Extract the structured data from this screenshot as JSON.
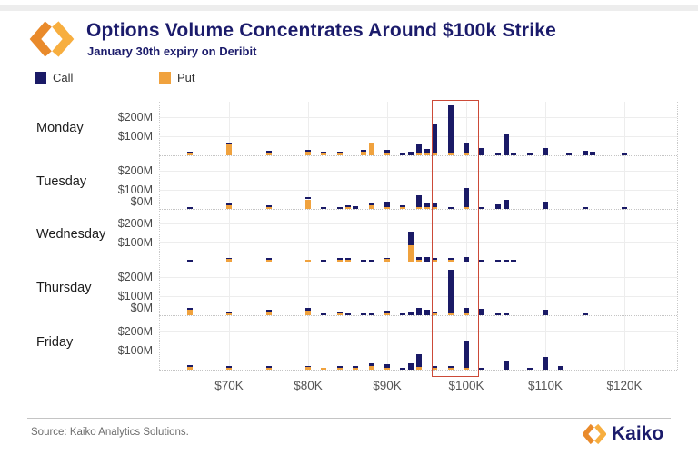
{
  "header": {
    "title": "Options Volume Concentrates Around $100k Strike",
    "subtitle": "January 30th expiry on Deribit"
  },
  "legend": [
    {
      "label": "Call",
      "color": "#1A1A66"
    },
    {
      "label": "Put",
      "color": "#F0A23E"
    }
  ],
  "footer": {
    "source": "Source: Kaiko Analytics Solutions.",
    "brand": "Kaiko"
  },
  "colors": {
    "call": "#1A1A66",
    "put": "#F0A23E",
    "title": "#1B1B6B",
    "highlight_red": "#CC4A38",
    "axis_text": "#555555",
    "grid": "#EDEDED"
  },
  "chart_data": {
    "type": "bar",
    "stacked": true,
    "title": "Options Volume Concentrates Around $100k Strike",
    "subtitle": "January 30th expiry on Deribit",
    "unit": "$M notional volume",
    "legend_position": "top-left",
    "series_names": [
      "Call",
      "Put"
    ],
    "x_axis": {
      "label": "Strike price",
      "ticks": [
        "$70K",
        "$80K",
        "$90K",
        "$100K",
        "$110K",
        "$120K"
      ],
      "tick_values": [
        70,
        80,
        90,
        100,
        110,
        120
      ],
      "range_k": [
        61,
        127
      ]
    },
    "y_axis": {
      "ticks": [
        "$200M",
        "$100M"
      ],
      "zero_tick": "$0M",
      "zero_tick_rows": [
        1,
        3
      ],
      "range": [
        0,
        276
      ],
      "gridlines": [
        100,
        200
      ]
    },
    "highlight_box": {
      "strike_range_k": [
        95.6,
        101.4
      ],
      "meaning": "volume concentrated around $100k strike"
    },
    "days": [
      {
        "day": "Monday",
        "bars": [
          [
            65,
            4,
            4
          ],
          [
            70,
            55,
            10
          ],
          [
            75,
            15,
            5
          ],
          [
            80,
            20,
            6
          ],
          [
            82,
            4,
            3
          ],
          [
            84,
            8,
            4
          ],
          [
            87,
            20,
            5
          ],
          [
            88,
            60,
            8
          ],
          [
            90,
            4,
            18
          ],
          [
            92,
            0,
            8
          ],
          [
            93,
            0,
            18
          ],
          [
            94,
            10,
            45
          ],
          [
            95,
            8,
            25
          ],
          [
            96,
            5,
            155
          ],
          [
            98,
            5,
            255
          ],
          [
            100,
            3,
            60
          ],
          [
            102,
            0,
            38
          ],
          [
            104,
            0,
            5
          ],
          [
            105,
            0,
            115
          ],
          [
            106,
            0,
            8
          ],
          [
            108,
            0,
            5
          ],
          [
            110,
            0,
            38
          ],
          [
            113,
            0,
            5
          ],
          [
            115,
            0,
            22
          ],
          [
            116,
            0,
            18
          ],
          [
            120,
            0,
            5
          ]
        ]
      },
      {
        "day": "Tuesday",
        "bars": [
          [
            65,
            0,
            5
          ],
          [
            70,
            18,
            3
          ],
          [
            75,
            2,
            6
          ],
          [
            80,
            50,
            10
          ],
          [
            82,
            0,
            8
          ],
          [
            84,
            0,
            5
          ],
          [
            85,
            10,
            8
          ],
          [
            86,
            0,
            15
          ],
          [
            88,
            20,
            8
          ],
          [
            90,
            5,
            30
          ],
          [
            92,
            8,
            3
          ],
          [
            94,
            8,
            65
          ],
          [
            95,
            10,
            18
          ],
          [
            96,
            3,
            18
          ],
          [
            98,
            0,
            10
          ],
          [
            100,
            5,
            100
          ],
          [
            102,
            0,
            10
          ],
          [
            104,
            0,
            25
          ],
          [
            105,
            0,
            50
          ],
          [
            110,
            0,
            38
          ],
          [
            115,
            0,
            8
          ],
          [
            120,
            0,
            5
          ]
        ]
      },
      {
        "day": "Wednesday",
        "bars": [
          [
            65,
            0,
            4
          ],
          [
            70,
            12,
            4
          ],
          [
            75,
            5,
            5
          ],
          [
            80,
            8,
            0
          ],
          [
            82,
            0,
            3
          ],
          [
            84,
            10,
            5
          ],
          [
            85,
            8,
            8
          ],
          [
            87,
            0,
            4
          ],
          [
            88,
            0,
            4
          ],
          [
            90,
            12,
            3
          ],
          [
            93,
            85,
            70
          ],
          [
            94,
            8,
            15
          ],
          [
            95,
            0,
            25
          ],
          [
            96,
            5,
            3
          ],
          [
            98,
            3,
            8
          ],
          [
            100,
            0,
            22
          ],
          [
            102,
            0,
            4
          ],
          [
            104,
            0,
            5
          ],
          [
            105,
            0,
            5
          ],
          [
            106,
            0,
            5
          ]
        ]
      },
      {
        "day": "Thursday",
        "bars": [
          [
            65,
            28,
            5
          ],
          [
            70,
            6,
            4
          ],
          [
            75,
            20,
            4
          ],
          [
            80,
            25,
            12
          ],
          [
            82,
            0,
            5
          ],
          [
            84,
            8,
            10
          ],
          [
            85,
            0,
            5
          ],
          [
            87,
            0,
            4
          ],
          [
            88,
            0,
            8
          ],
          [
            90,
            4,
            14
          ],
          [
            92,
            0,
            6
          ],
          [
            93,
            0,
            15
          ],
          [
            94,
            0,
            40
          ],
          [
            95,
            0,
            28
          ],
          [
            96,
            2,
            8
          ],
          [
            98,
            4,
            230
          ],
          [
            100,
            8,
            30
          ],
          [
            102,
            0,
            32
          ],
          [
            104,
            0,
            6
          ],
          [
            105,
            0,
            8
          ],
          [
            110,
            0,
            30
          ],
          [
            115,
            0,
            6
          ]
        ]
      },
      {
        "day": "Friday",
        "bars": [
          [
            65,
            15,
            3
          ],
          [
            70,
            10,
            2
          ],
          [
            75,
            10,
            2
          ],
          [
            80,
            12,
            3
          ],
          [
            82,
            4,
            0
          ],
          [
            84,
            10,
            3
          ],
          [
            86,
            10,
            8
          ],
          [
            88,
            20,
            15
          ],
          [
            90,
            8,
            22
          ],
          [
            92,
            0,
            8
          ],
          [
            93,
            0,
            33
          ],
          [
            94,
            15,
            68
          ],
          [
            96,
            8,
            8
          ],
          [
            98,
            3,
            12
          ],
          [
            100,
            5,
            145
          ],
          [
            102,
            0,
            10
          ],
          [
            105,
            0,
            45
          ],
          [
            108,
            0,
            4
          ],
          [
            110,
            0,
            65
          ],
          [
            112,
            0,
            20
          ]
        ]
      }
    ],
    "bar_values_format": "[strike_k, put_$M, call_$M]"
  }
}
